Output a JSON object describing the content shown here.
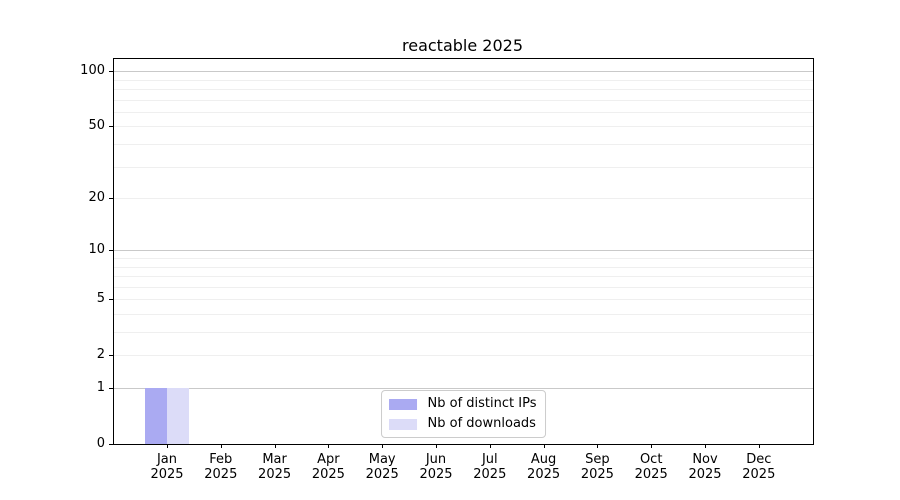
{
  "title": "reactable 2025",
  "chart_data": {
    "type": "bar",
    "title": "reactable 2025",
    "categories": [
      "Jan 2025",
      "Feb 2025",
      "Mar 2025",
      "Apr 2025",
      "May 2025",
      "Jun 2025",
      "Jul 2025",
      "Aug 2025",
      "Sep 2025",
      "Oct 2025",
      "Nov 2025",
      "Dec 2025"
    ],
    "series": [
      {
        "name": "Nb of distinct IPs",
        "color": "#aaaaf2",
        "values": [
          1,
          0,
          0,
          0,
          0,
          0,
          0,
          0,
          0,
          0,
          0,
          0
        ]
      },
      {
        "name": "Nb of downloads",
        "color": "#dcdcf8",
        "values": [
          1,
          0,
          0,
          0,
          0,
          0,
          0,
          0,
          0,
          0,
          0,
          0
        ]
      }
    ],
    "xlabel": "",
    "ylabel": "",
    "y_axis": {
      "scale": "log1p",
      "ticks": [
        0,
        1,
        2,
        5,
        10,
        20,
        50,
        100
      ],
      "major_gridlines": [
        1,
        10,
        100
      ],
      "minor_gridlines": [
        2,
        3,
        4,
        5,
        6,
        7,
        8,
        9,
        20,
        30,
        40,
        50,
        60,
        70,
        80,
        90
      ],
      "ylim": [
        0,
        118
      ]
    },
    "legend": {
      "position": "lower center"
    },
    "grid": true
  },
  "colors": {
    "major_grid": "#c9c9c9",
    "minor_grid": "#efefef",
    "spine": "#000000",
    "background": "#ffffff",
    "text": "#000000",
    "legend_border": "#cccccc"
  }
}
